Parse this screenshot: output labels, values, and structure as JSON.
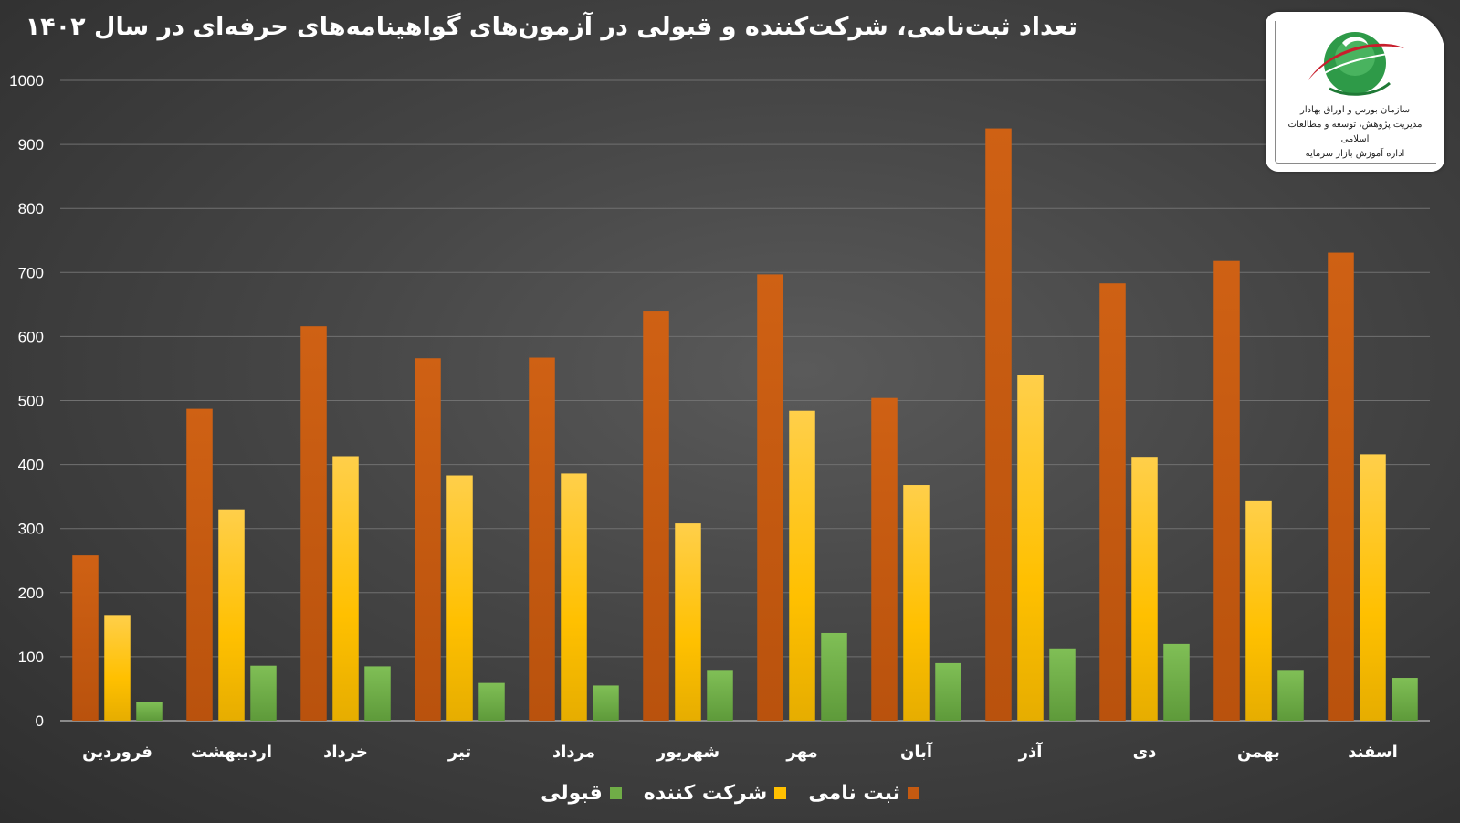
{
  "chart_data": {
    "type": "bar",
    "title": "تعداد ثبت‌نامی، شرکت‌کننده و قبولی در آزمون‌های گواهینامه‌های حرفه‌ای در سال ۱۴۰۲",
    "xlabel": "",
    "ylabel": "",
    "ylim": [
      0,
      1000
    ],
    "yticks": [
      0,
      100,
      200,
      300,
      400,
      500,
      600,
      700,
      800,
      900,
      1000
    ],
    "grid": true,
    "legend_position": "bottom",
    "categories": [
      "فروردین",
      "اردیبهشت",
      "خرداد",
      "تیر",
      "مرداد",
      "شهریور",
      "مهر",
      "آبان",
      "آذر",
      "دی",
      "بهمن",
      "اسفند"
    ],
    "series": [
      {
        "name": "ثبت نامی",
        "color": "#c55a11",
        "values": [
          258,
          487,
          616,
          566,
          567,
          639,
          697,
          504,
          925,
          683,
          718,
          731
        ]
      },
      {
        "name": "شرکت کننده",
        "color": "#ffc000",
        "values": [
          165,
          330,
          413,
          383,
          386,
          308,
          484,
          368,
          540,
          412,
          344,
          416
        ]
      },
      {
        "name": "قبولی",
        "color": "#70ad47",
        "values": [
          29,
          86,
          85,
          59,
          55,
          78,
          137,
          90,
          113,
          120,
          78,
          67
        ]
      }
    ]
  },
  "logo": {
    "icon": "exchange-emblem-icon",
    "lines": [
      "سازمان بورس و اوراق بهادار",
      "مدیریت پژوهش، توسعه و مطالعات اسلامی",
      "اداره آموزش بازار سرمایه"
    ]
  }
}
